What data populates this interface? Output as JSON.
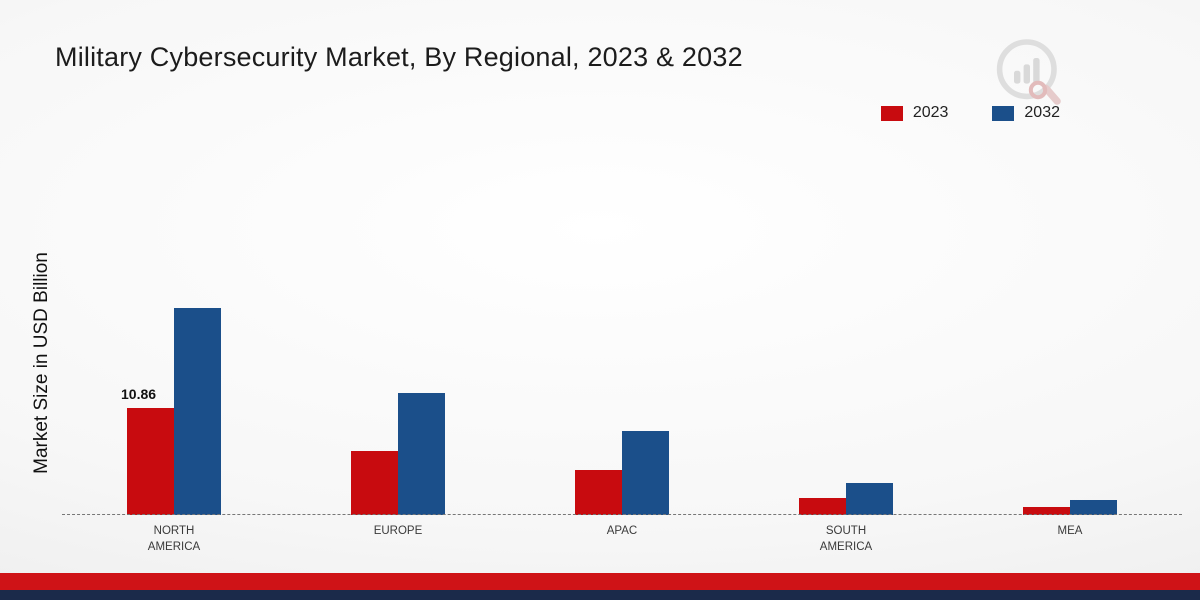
{
  "chart": {
    "title": "Military Cybersecurity Market, By Regional, 2023 & 2032",
    "ylabel": "Market Size in USD Billion"
  },
  "legend": [
    {
      "label": "2023",
      "color": "#c80b0f"
    },
    {
      "label": "2032",
      "color": "#1b4f8a"
    }
  ],
  "colors": {
    "accent_red": "#c80b0f",
    "accent_blue": "#1b4f8a",
    "footer_red": "#cf1317",
    "footer_navy": "#1b2a4a"
  },
  "logo": {
    "name": "market-research-watermark-logo"
  },
  "chart_data": {
    "type": "bar",
    "title": "Military Cybersecurity Market, By Regional, 2023 & 2032",
    "xlabel": "",
    "ylabel": "Market Size in USD Billion",
    "ylim": [
      0,
      22
    ],
    "grid": false,
    "legend_position": "top-right",
    "categories": [
      "NORTH AMERICA",
      "EUROPE",
      "APAC",
      "SOUTH AMERICA",
      "MEA"
    ],
    "series": [
      {
        "name": "2023",
        "color": "#c80b0f",
        "values": [
          10.86,
          6.5,
          4.6,
          1.7,
          0.8
        ]
      },
      {
        "name": "2032",
        "color": "#1b4f8a",
        "values": [
          21.0,
          12.4,
          8.5,
          3.2,
          1.5
        ]
      }
    ],
    "annotations": [
      {
        "text": "10.86",
        "series_index": 0,
        "category_index": 0
      }
    ]
  }
}
